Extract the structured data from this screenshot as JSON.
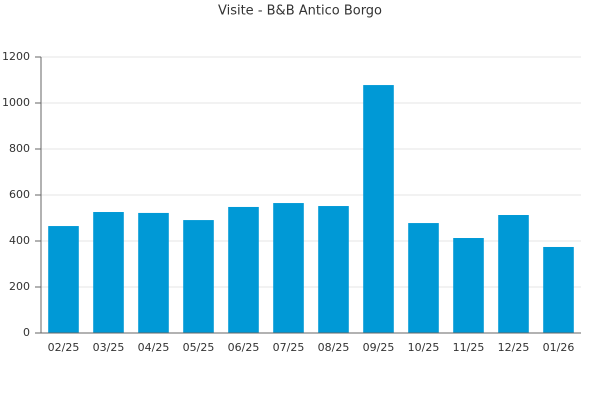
{
  "chart_data": {
    "type": "bar",
    "title": "Visite - B&B Antico Borgo",
    "categories": [
      "02/25",
      "03/25",
      "04/25",
      "05/25",
      "06/25",
      "07/25",
      "08/25",
      "09/25",
      "10/25",
      "11/25",
      "12/25",
      "01/26"
    ],
    "values": [
      465,
      526,
      522,
      491,
      548,
      565,
      552,
      1078,
      478,
      413,
      513,
      374
    ],
    "color": "#0099d6",
    "ylim": [
      0,
      1200
    ],
    "yticks": [
      0,
      200,
      400,
      600,
      800,
      1000,
      1200
    ],
    "grid": true
  }
}
